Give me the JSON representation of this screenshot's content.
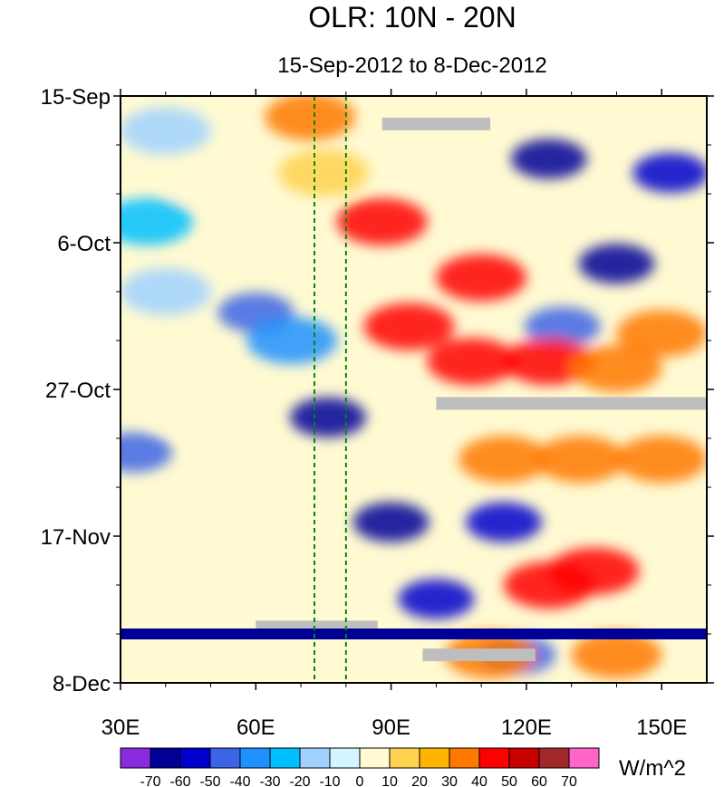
{
  "chart_data": {
    "type": "heatmap",
    "title": "OLR: 10N - 20N",
    "subtitle": "15-Sep-2012 to 8-Dec-2012",
    "xlabel": "",
    "ylabel": "",
    "x_range": [
      30,
      160
    ],
    "x_units": "degrees East longitude",
    "y_range": [
      "15-Sep-2012",
      "8-Dec-2012"
    ],
    "y_range_days": [
      0,
      84
    ],
    "x_ticks": [
      {
        "value": 30,
        "label": "30E"
      },
      {
        "value": 60,
        "label": "60E"
      },
      {
        "value": 90,
        "label": "90E"
      },
      {
        "value": 120,
        "label": "120E"
      },
      {
        "value": 150,
        "label": "150E"
      }
    ],
    "y_ticks": [
      {
        "value": 0,
        "label": "15-Sep"
      },
      {
        "value": 21,
        "label": "6-Oct"
      },
      {
        "value": 42,
        "label": "27-Oct"
      },
      {
        "value": 63,
        "label": "17-Nov"
      },
      {
        "value": 84,
        "label": "8-Dec"
      }
    ],
    "reference_lines_x": [
      73,
      80
    ],
    "colorbar": {
      "units": "W/m^2",
      "levels": [
        "-70",
        "-60",
        "-50",
        "-40",
        "-30",
        "-20",
        "-10",
        "0",
        "10",
        "20",
        "30",
        "40",
        "50",
        "60",
        "70"
      ],
      "colors": [
        "#8a2be2",
        "#000096",
        "#0000cd",
        "#3c64e6",
        "#1e90ff",
        "#00bfff",
        "#a0d2ff",
        "#d2f5ff",
        "#fffad2",
        "#ffd250",
        "#ffb400",
        "#ff7800",
        "#ff0000",
        "#c80000",
        "#a02828",
        "#ff64c8"
      ]
    },
    "series": [
      {
        "name": "OLR anomaly features (lon, day, value W/m^2)",
        "features": [
          {
            "lon": 40,
            "day": 5,
            "value": -20
          },
          {
            "lon": 36,
            "day": 18,
            "value": -30
          },
          {
            "lon": 40,
            "day": 28,
            "value": -20
          },
          {
            "lon": 60,
            "day": 31,
            "value": -50
          },
          {
            "lon": 68,
            "day": 35,
            "value": -40
          },
          {
            "lon": 76,
            "day": 46,
            "value": -70
          },
          {
            "lon": 33,
            "day": 51,
            "value": -50
          },
          {
            "lon": 90,
            "day": 61,
            "value": -70
          },
          {
            "lon": 100,
            "day": 72,
            "value": -60
          },
          {
            "lon": 125,
            "day": 9,
            "value": -70
          },
          {
            "lon": 152,
            "day": 11,
            "value": -60
          },
          {
            "lon": 140,
            "day": 24,
            "value": -70
          },
          {
            "lon": 128,
            "day": 33,
            "value": -50
          },
          {
            "lon": 115,
            "day": 61,
            "value": -60
          },
          {
            "lon": 118,
            "day": 80,
            "value": -50
          },
          {
            "lon": 75,
            "day": 11,
            "value": 10
          },
          {
            "lon": 72,
            "day": 3,
            "value": 30
          },
          {
            "lon": 88,
            "day": 18,
            "value": 40
          },
          {
            "lon": 110,
            "day": 26,
            "value": 40
          },
          {
            "lon": 94,
            "day": 33,
            "value": 40
          },
          {
            "lon": 108,
            "day": 38,
            "value": 40
          },
          {
            "lon": 125,
            "day": 38,
            "value": 40
          },
          {
            "lon": 140,
            "day": 39,
            "value": 30
          },
          {
            "lon": 150,
            "day": 34,
            "value": 30
          },
          {
            "lon": 115,
            "day": 52,
            "value": 30
          },
          {
            "lon": 132,
            "day": 52,
            "value": 30
          },
          {
            "lon": 150,
            "day": 52,
            "value": 30
          },
          {
            "lon": 125,
            "day": 70,
            "value": 40
          },
          {
            "lon": 135,
            "day": 68,
            "value": 40
          },
          {
            "lon": 112,
            "day": 80,
            "value": 30
          },
          {
            "lon": 140,
            "day": 80,
            "value": 30
          },
          {
            "lon": 50,
            "day": 12,
            "value": 0
          },
          {
            "lon": 45,
            "day": 45,
            "value": 0
          }
        ]
      },
      {
        "name": "Missing data (gray)",
        "segments": [
          {
            "lon_start": 88,
            "lon_end": 112,
            "day": 4
          },
          {
            "lon_start": 100,
            "lon_end": 160,
            "day": 44
          },
          {
            "lon_start": 60,
            "lon_end": 87,
            "day": 76
          },
          {
            "lon_start": 97,
            "lon_end": 122,
            "day": 80
          }
        ]
      },
      {
        "name": "Day with large negative values (full band)",
        "day": 77,
        "value": -70
      }
    ]
  }
}
